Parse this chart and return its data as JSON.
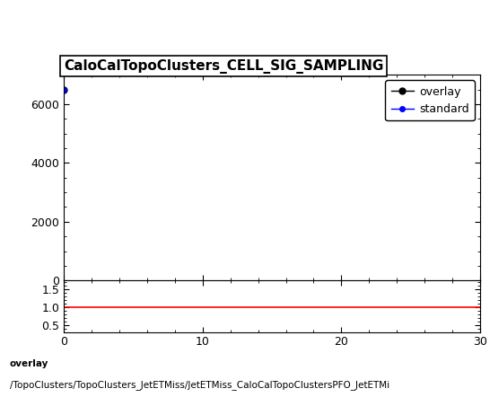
{
  "title": "CaloCalTopoClusters_CELL_SIG_SAMPLING",
  "overlay_x": [
    0
  ],
  "overlay_y": [
    6500
  ],
  "standard_x": [
    0
  ],
  "standard_y": [
    6500
  ],
  "overlay_color": "#000000",
  "standard_color": "#0000ff",
  "ratio_line_y": 1.0,
  "ratio_line_color": "#ff0000",
  "xmin": 0,
  "xmax": 30,
  "ymin": 0,
  "ymax": 7000,
  "yticks_main": [
    0,
    2000,
    4000,
    6000
  ],
  "ratio_ymin": 0.3,
  "ratio_ymax": 1.75,
  "ratio_yticks": [
    0.5,
    1.0,
    1.5
  ],
  "xticks": [
    0,
    10,
    20,
    30
  ],
  "footer_line1": "overlay",
  "footer_line2": "/TopoClusters/TopoClusters_JetETMiss/JetETMiss_CaloCalTopoClustersPFO_JetETMi",
  "legend_entries": [
    "overlay",
    "standard"
  ],
  "background_color": "#ffffff",
  "title_fontsize": 11,
  "tick_fontsize": 9,
  "footer_fontsize": 7.5,
  "legend_fontsize": 9
}
